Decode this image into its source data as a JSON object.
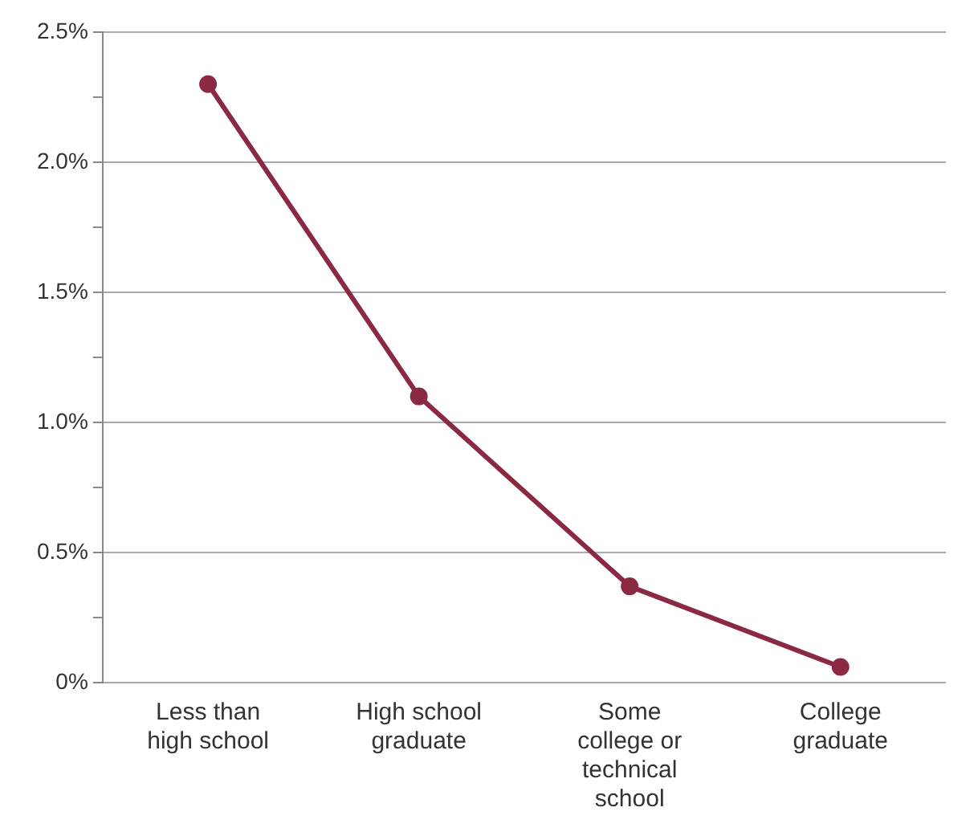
{
  "chart_data": {
    "type": "line",
    "categories": [
      "Less than high school",
      "High school graduate",
      "Some college or technical school",
      "College graduate"
    ],
    "series": [
      {
        "color": "#8b2942",
        "values": [
          2.3,
          1.1,
          0.37,
          0.06
        ]
      }
    ],
    "ylim": [
      0,
      2.5
    ],
    "yticks": [
      {
        "value": 0,
        "label": "0%"
      },
      {
        "value": 0.25,
        "label": null
      },
      {
        "value": 0.5,
        "label": "0.5%"
      },
      {
        "value": 0.75,
        "label": null
      },
      {
        "value": 1,
        "label": "1.0%"
      },
      {
        "value": 1.25,
        "label": null
      },
      {
        "value": 1.5,
        "label": "1.5%"
      },
      {
        "value": 1.75,
        "label": null
      },
      {
        "value": 2,
        "label": "2.0%"
      },
      {
        "value": 2.25,
        "label": null
      },
      {
        "value": 2.5,
        "label": "2.5%"
      }
    ],
    "grid": "y",
    "marker": "circle",
    "line_style": "solid",
    "legend": false
  }
}
